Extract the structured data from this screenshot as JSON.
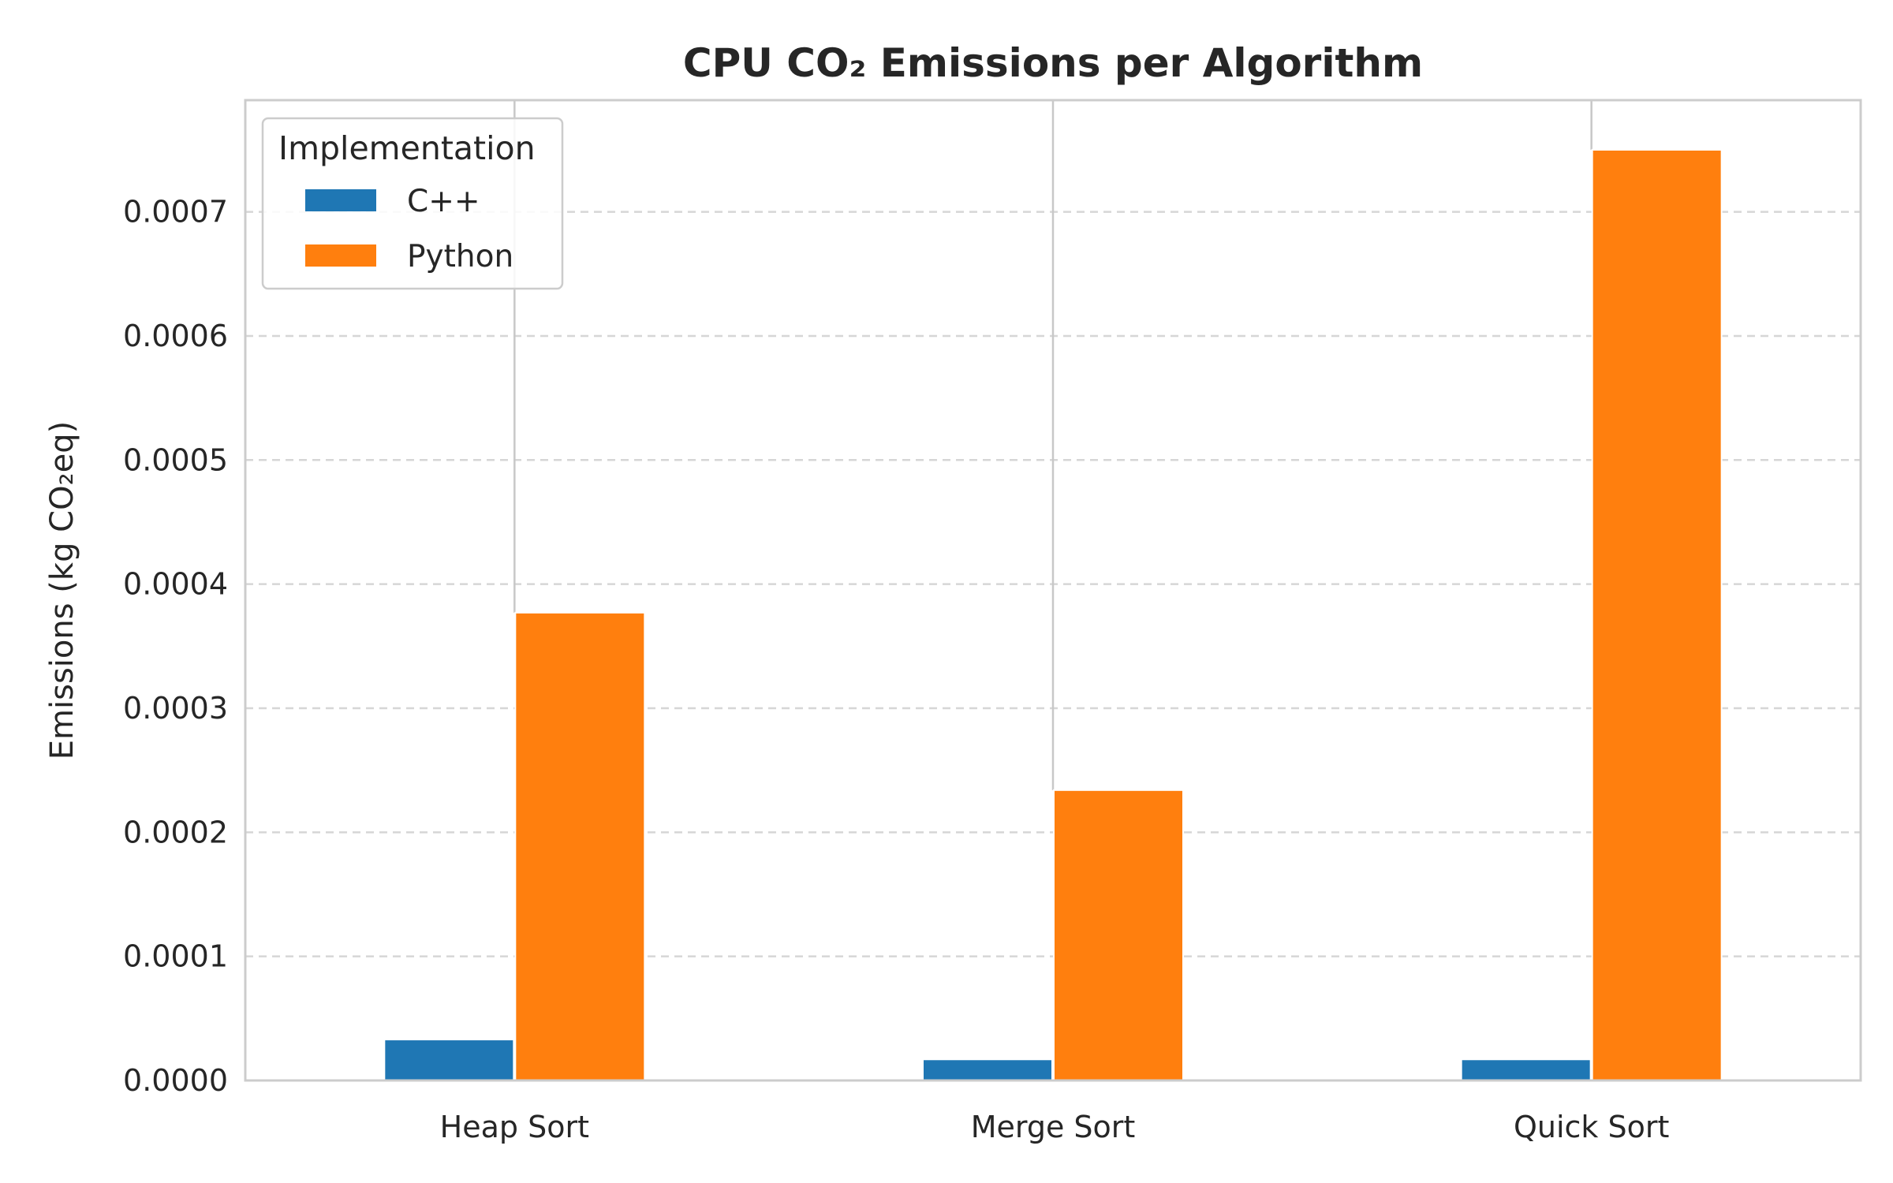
{
  "chart_data": {
    "type": "bar",
    "title": "CPU CO₂ Emissions per Algorithm",
    "xlabel": "",
    "ylabel": "Emissions (kg CO₂eq)",
    "categories": [
      "Heap Sort",
      "Merge Sort",
      "Quick Sort"
    ],
    "series": [
      {
        "name": "C++",
        "values": [
          3.3e-05,
          1.7e-05,
          1.7e-05
        ],
        "color": "#1f77b4"
      },
      {
        "name": "Python",
        "values": [
          0.000377,
          0.000234,
          0.00075
        ],
        "color": "#ff7f0e"
      }
    ],
    "error_lines": [
      {
        "category": "Heap Sort",
        "low": 0.000377,
        "high": 0.00079
      },
      {
        "category": "Merge Sort",
        "low": 0.000234,
        "high": 0.00079
      },
      {
        "category": "Quick Sort",
        "low": 0.00075,
        "high": 0.00079
      }
    ],
    "ylim": [
      0,
      0.00079
    ],
    "yticks": [
      "0.0000",
      "0.0001",
      "0.0002",
      "0.0003",
      "0.0004",
      "0.0005",
      "0.0006",
      "0.0007"
    ],
    "ytick_values": [
      0,
      0.0001,
      0.0002,
      0.0003,
      0.0004,
      0.0005,
      0.0006,
      0.0007
    ],
    "grid": "horizontal dashed",
    "legend": {
      "title": "Implementation",
      "placement": "top-left"
    }
  }
}
